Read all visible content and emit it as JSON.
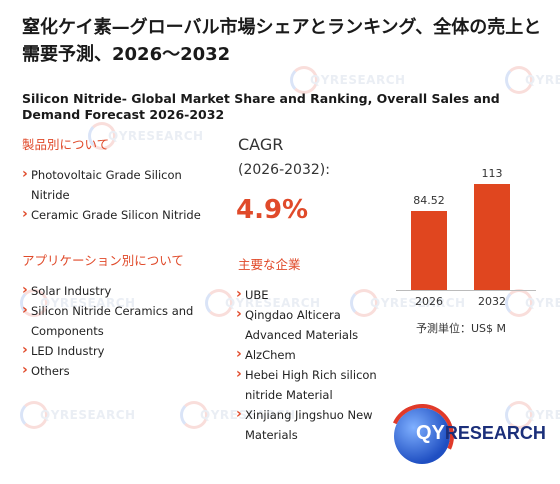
{
  "title_jp": "窒化ケイ素—グローバル市場シェアとランキング、全体の売上と需要予測、2026～2032",
  "title_en": "Silicon Nitride- Global Market Share and Ranking, Overall Sales and Demand Forecast 2026-2032",
  "product_section": {
    "heading": "製品別について",
    "items": [
      "Photovoltaic Grade Silicon Nitride",
      "Ceramic Grade Silicon Nitride"
    ]
  },
  "application_section": {
    "heading": "アプリケーション別について",
    "items": [
      "Solar Industry",
      "Silicon Nitride Ceramics and Components",
      "LED Industry",
      "Others"
    ]
  },
  "cagr": {
    "label": "CAGR",
    "period": "(2026-2032):",
    "value": "4.9%"
  },
  "companies_section": {
    "heading": "主要な企業",
    "items": [
      "UBE",
      "Qingdao Alticera Advanced Materials",
      "AlzChem",
      "Hebei High Rich silicon nitride Material",
      "Xinjiang Jingshuo New Materials"
    ]
  },
  "chart_data": {
    "type": "bar",
    "categories": [
      "2026",
      "2032"
    ],
    "values": [
      84.52,
      113
    ],
    "value_labels": [
      "84.52",
      "113"
    ],
    "unit_label": "予測単位：US$ M",
    "colors": {
      "bar": "#e0461f"
    }
  },
  "logo": {
    "q": "QY",
    "r": "RESEARCH"
  },
  "watermark_text": "QYRESEARCH"
}
